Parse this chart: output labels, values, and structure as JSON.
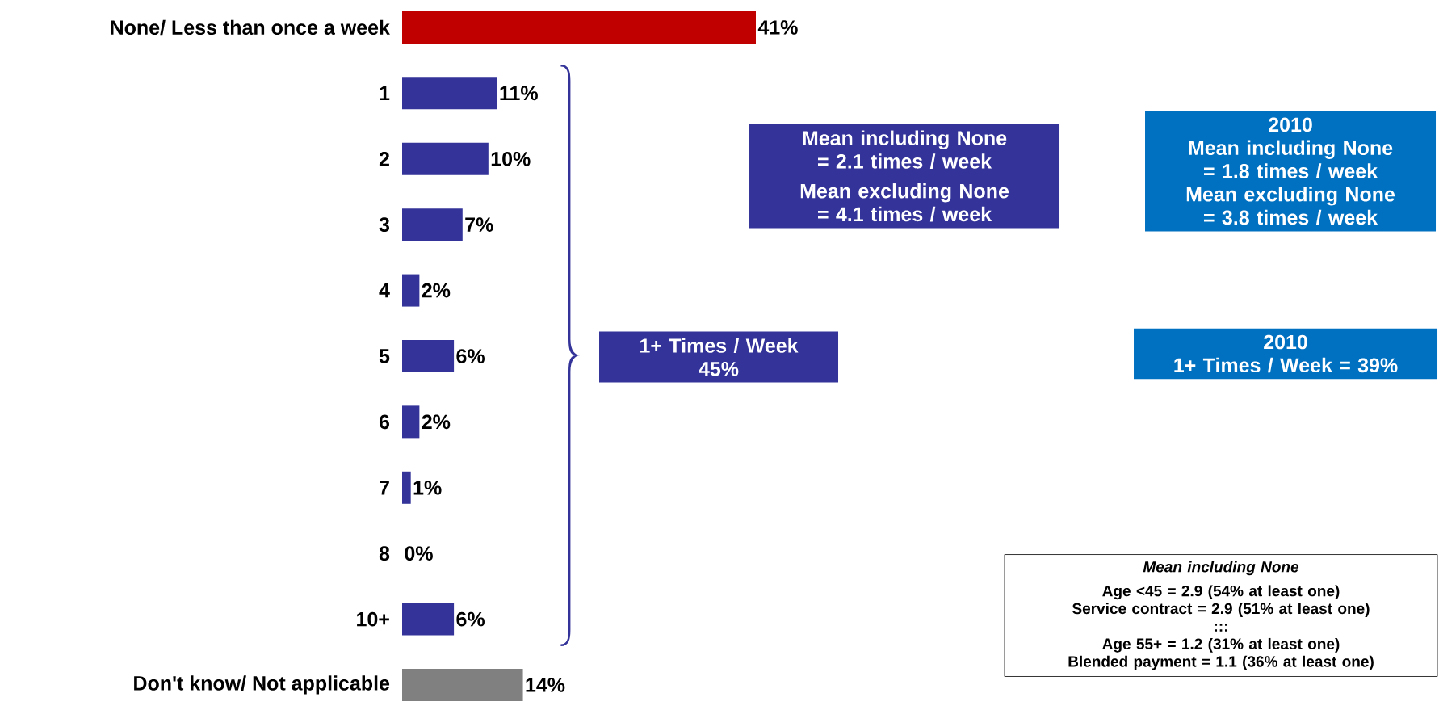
{
  "chart_data": {
    "type": "bar",
    "orientation": "horizontal",
    "categories": [
      "None/ Less than once a week",
      "1",
      "2",
      "3",
      "4",
      "5",
      "6",
      "7",
      "8",
      "10+",
      "Don't know/ Not applicable"
    ],
    "values": [
      41,
      11,
      10,
      7,
      2,
      6,
      2,
      1,
      0,
      6,
      14
    ],
    "colors": [
      "#c00000",
      "#333399",
      "#333399",
      "#333399",
      "#333399",
      "#333399",
      "#333399",
      "#333399",
      "#333399",
      "#333399",
      "#808080"
    ],
    "value_labels": [
      "41%",
      "11%",
      "10%",
      "7%",
      "2%",
      "6%",
      "2%",
      "1%",
      "0%",
      "6%",
      "14%"
    ],
    "annotations": [
      "Mean including None",
      "= 2.1 times / week",
      "Mean excluding None",
      "= 4.1 times / week",
      "2010",
      "Mean including None",
      "= 1.8 times / week",
      "Mean excluding None",
      "= 3.8 times / week",
      "1+ Times / Week",
      "45%",
      "2010",
      "1+ Times / Week = 39%",
      "Mean including None",
      "Age <45 = 2.9 (54% at least one)",
      "Service contract = 2.9 (51% at least one)",
      ":::",
      "Age 55+ = 1.2 (31% at least one)",
      "Blended payment = 1.1 (36% at least one)"
    ]
  }
}
